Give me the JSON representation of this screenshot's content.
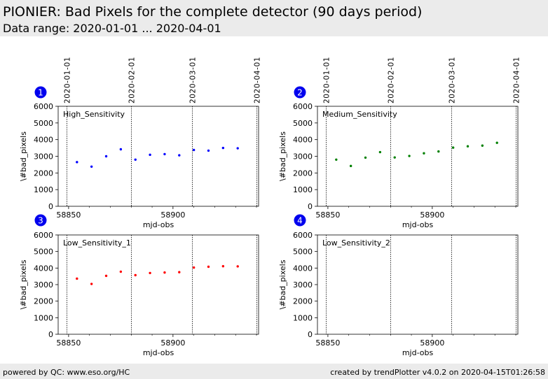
{
  "header": {
    "title": "PIONIER: Bad Pixels for the complete detector (90 days period)",
    "subtitle": "Data range: 2020-01-01 ... 2020-04-01"
  },
  "footer": {
    "left": "powered by QC: www.eso.org/HC",
    "right": "created by trendPlotter v4.0.2 on 2020-04-15T01:26:58"
  },
  "colors": {
    "background": "#ffffff",
    "header_bg": "#ebebeb",
    "badge": "#0000ee",
    "series_1": "#0000ff",
    "series_2": "#008000",
    "series_3": "#ff0000"
  },
  "chart_data": [
    {
      "type": "scatter",
      "panel": "1",
      "label": "High_Sensitivity",
      "xlabel": "mjd-obs",
      "ylabel": "\\#bad_pixels",
      "xlim": [
        58845,
        58941
      ],
      "ylim": [
        0,
        6000
      ],
      "xticks": [
        58850,
        58900
      ],
      "yticks": [
        0,
        1000,
        2000,
        3000,
        4000,
        5000,
        6000
      ],
      "date_markers": [
        {
          "mjd": 58849,
          "label": "2020-01-01"
        },
        {
          "mjd": 58880,
          "label": "2020-02-01"
        },
        {
          "mjd": 58909,
          "label": "2020-03-01"
        },
        {
          "mjd": 58940,
          "label": "2020-04-01"
        }
      ],
      "color": "#0000ff",
      "x": [
        58854,
        58861,
        58868,
        58875,
        58882,
        58889,
        58896,
        58903,
        58910,
        58917,
        58924,
        58931
      ],
      "y": [
        2650,
        2380,
        3000,
        3420,
        2800,
        3090,
        3130,
        3060,
        3380,
        3340,
        3500,
        3480
      ]
    },
    {
      "type": "scatter",
      "panel": "2",
      "label": "Medium_Sensitivity",
      "xlabel": "mjd-obs",
      "ylabel": "\\#bad_pixels",
      "xlim": [
        58845,
        58941
      ],
      "ylim": [
        0,
        6000
      ],
      "xticks": [
        58850,
        58900
      ],
      "yticks": [
        0,
        1000,
        2000,
        3000,
        4000,
        5000,
        6000
      ],
      "date_markers": [
        {
          "mjd": 58849,
          "label": "2020-01-01"
        },
        {
          "mjd": 58880,
          "label": "2020-02-01"
        },
        {
          "mjd": 58909,
          "label": "2020-03-01"
        },
        {
          "mjd": 58940,
          "label": "2020-04-01"
        }
      ],
      "color": "#008000",
      "x": [
        58854,
        58861,
        58868,
        58875,
        58882,
        58889,
        58896,
        58903,
        58910,
        58917,
        58924,
        58931
      ],
      "y": [
        2800,
        2420,
        2920,
        3250,
        2930,
        3020,
        3180,
        3290,
        3520,
        3600,
        3640,
        3810
      ]
    },
    {
      "type": "scatter",
      "panel": "3",
      "label": "Low_Sensitivity_1",
      "xlabel": "mjd-obs",
      "ylabel": "\\#bad_pixels",
      "xlim": [
        58845,
        58941
      ],
      "ylim": [
        0,
        6000
      ],
      "xticks": [
        58850,
        58900
      ],
      "yticks": [
        0,
        1000,
        2000,
        3000,
        4000,
        5000,
        6000
      ],
      "date_markers": [
        {
          "mjd": 58849,
          "label": "2020-01-01"
        },
        {
          "mjd": 58880,
          "label": "2020-02-01"
        },
        {
          "mjd": 58909,
          "label": "2020-03-01"
        },
        {
          "mjd": 58940,
          "label": "2020-04-01"
        }
      ],
      "color": "#ff0000",
      "x": [
        58854,
        58861,
        58868,
        58875,
        58882,
        58889,
        58896,
        58903,
        58910,
        58917,
        58924,
        58931
      ],
      "y": [
        3360,
        3040,
        3530,
        3780,
        3570,
        3700,
        3730,
        3750,
        4030,
        4080,
        4110,
        4100
      ]
    },
    {
      "type": "scatter",
      "panel": "4",
      "label": "Low_Sensitivity_2",
      "xlabel": "mjd-obs",
      "ylabel": "\\#bad_pixels",
      "xlim": [
        58845,
        58941
      ],
      "ylim": [
        0,
        6000
      ],
      "xticks": [
        58850,
        58900
      ],
      "yticks": [
        0,
        1000,
        2000,
        3000,
        4000,
        5000,
        6000
      ],
      "date_markers": [
        {
          "mjd": 58849,
          "label": "2020-01-01"
        },
        {
          "mjd": 58880,
          "label": "2020-02-01"
        },
        {
          "mjd": 58909,
          "label": "2020-03-01"
        },
        {
          "mjd": 58940,
          "label": "2020-04-01"
        }
      ],
      "color": "#000000",
      "x": [],
      "y": []
    }
  ]
}
